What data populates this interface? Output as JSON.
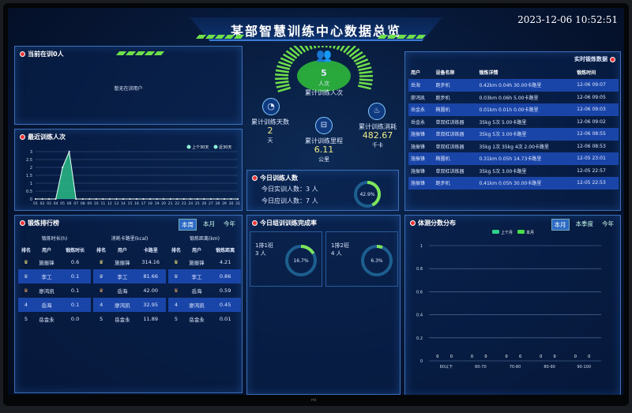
{
  "header": {
    "title": "某部智慧训练中心数据总览",
    "datetime": "2023-12-06 10:52:51"
  },
  "current": {
    "title": "当前在训0人",
    "empty": "暂无在训用户"
  },
  "recent": {
    "title": "最近训练人次"
  },
  "center": {
    "count": "5",
    "count_unit": "人次",
    "count_label": "累计训练人次",
    "days_label": "累计训练天数",
    "days": "2",
    "days_unit": "天",
    "dist_label": "累计训练里程",
    "dist": "6.11",
    "dist_unit": "公里",
    "cal_label": "累计训练消耗",
    "cal": "482.67",
    "cal_unit": "千卡"
  },
  "today": {
    "title": "今日训练人数",
    "actual": "今日实训人数：3 人",
    "expected": "今日应训人数：7 人",
    "rate": "42.9%",
    "rate_value": 42.9
  },
  "org": {
    "title": "今日组训训练完成率",
    "groups": [
      {
        "name": "1排1班",
        "count": "3 人",
        "rate": "16.7%",
        "rate_value": 16.7
      },
      {
        "name": "1排2班",
        "count": "4 人",
        "rate": "6.3%",
        "rate_value": 6.3
      }
    ]
  },
  "realtime": {
    "title": "实时锻炼数据",
    "columns": [
      "用户",
      "设备名称",
      "锻炼详情",
      "锻炼时间"
    ],
    "rows": [
      [
        "岳海",
        "跑步机",
        "0.42km 0.04h 30.00卡路里",
        "12-06 09:07"
      ],
      [
        "廖鸿凯",
        "跑步机",
        "0.03km 0.06h 5.00卡路里",
        "12-06 09:05"
      ],
      [
        "岳金永",
        "椭圆机",
        "0.01km 0.01h 0.00卡路里",
        "12-06 09:03"
      ],
      [
        "岳金永",
        "单双杠训练器",
        "35kg 5次 5.00卡路里",
        "12-06 09:02"
      ],
      [
        "施振锋",
        "单双杠训练器",
        "35kg 5次 3.00卡路里",
        "12-06 08:55"
      ],
      [
        "施振锋",
        "单双杠训练器",
        "35kg 1次 35kg 4次 2.00卡路里",
        "12-06 08:53"
      ],
      [
        "施振锋",
        "椭圆机",
        "0.31km 0.05h 14.73卡路里",
        "12-05 23:01"
      ],
      [
        "施振锋",
        "单双杠训练器",
        "35kg 5次 3.00卡路里",
        "12-05 22:57"
      ],
      [
        "施振锋",
        "跑步机",
        "0.41km 0.05h 30.00卡路里",
        "12-05 22:53"
      ]
    ]
  },
  "ranking": {
    "title": "锻炼排行榜",
    "tabs": [
      "本周",
      "本月",
      "今年"
    ],
    "boards": [
      {
        "caption": "锻炼时长(h)",
        "columns": [
          "排名",
          "用户",
          "锻炼时长"
        ],
        "rows": [
          [
            "1",
            "施振锋",
            "0.6"
          ],
          [
            "2",
            "李工",
            "0.1"
          ],
          [
            "3",
            "廖鸿凯",
            "0.1"
          ],
          [
            "4",
            "岳海",
            "0.1"
          ],
          [
            "5",
            "岳金永",
            "0.0"
          ]
        ]
      },
      {
        "caption": "消耗卡路里(kcal)",
        "columns": [
          "排名",
          "用户",
          "卡路里"
        ],
        "rows": [
          [
            "1",
            "施振锋",
            "314.16"
          ],
          [
            "2",
            "李工",
            "81.66"
          ],
          [
            "3",
            "岳海",
            "42.00"
          ],
          [
            "4",
            "廖鸿凯",
            "32.95"
          ],
          [
            "5",
            "岳金永",
            "11.89"
          ]
        ]
      },
      {
        "caption": "锻炼距离(km)",
        "columns": [
          "排名",
          "用户",
          "锻炼距离"
        ],
        "rows": [
          [
            "1",
            "施振锋",
            "4.21"
          ],
          [
            "2",
            "李工",
            "0.86"
          ],
          [
            "3",
            "岳海",
            "0.59"
          ],
          [
            "4",
            "廖鸿凯",
            "0.45"
          ],
          [
            "5",
            "岳金永",
            "0.01"
          ]
        ]
      }
    ]
  },
  "bodytest": {
    "title": "体测分数分布",
    "tabs": [
      "本月",
      "本季度",
      "今年"
    ]
  },
  "colors": {
    "accent": "#6fe04a",
    "panel_border": "#3c6fb8",
    "row_highlight": "#1a45a8",
    "danger_dot": "#e33333"
  },
  "chart_data": [
    {
      "type": "area",
      "title": "最近训练人次",
      "x": [
        "01",
        "02",
        "03",
        "04",
        "05",
        "06",
        "07",
        "08",
        "09",
        "10",
        "11",
        "12",
        "13",
        "14",
        "15",
        "16",
        "17",
        "18",
        "19",
        "20",
        "21",
        "22",
        "23",
        "24",
        "25",
        "26",
        "27",
        "28",
        "29",
        "30",
        "31"
      ],
      "series": [
        {
          "name": "上个30天",
          "values": [
            0,
            0,
            0,
            0,
            0,
            0,
            0,
            0,
            0,
            0,
            0,
            0,
            0,
            0,
            0,
            0,
            0,
            0,
            0,
            0,
            0,
            0,
            0,
            0,
            0,
            0,
            0,
            0,
            0,
            0,
            0
          ]
        },
        {
          "name": "近30天",
          "values": [
            0,
            0,
            0,
            0,
            2,
            3,
            0,
            0,
            0,
            0,
            0,
            0,
            0,
            0,
            0,
            0,
            0,
            0,
            0,
            0,
            0,
            0,
            0,
            0,
            0,
            0,
            0,
            0,
            0,
            0,
            0
          ]
        }
      ],
      "ylim": [
        0,
        3
      ],
      "yticks": [
        "0",
        "0.5",
        "1",
        "1.5",
        "2",
        "2.5",
        "3"
      ],
      "legend": "top-right",
      "grid": true
    },
    {
      "type": "bar",
      "title": "体测分数分布",
      "categories": [
        "60以下",
        "60-70",
        "70-80",
        "80-90",
        "90-100"
      ],
      "series": [
        {
          "name": "上个月",
          "values": [
            0,
            0,
            0,
            0,
            0
          ]
        },
        {
          "name": "本月",
          "values": [
            0,
            0,
            0,
            0,
            0
          ]
        }
      ],
      "ylim": [
        0,
        1
      ],
      "yticks": [
        "0",
        "0.2",
        "0.4",
        "0.6",
        "0.8",
        "1"
      ],
      "legend": "top-center",
      "grid": true
    }
  ]
}
